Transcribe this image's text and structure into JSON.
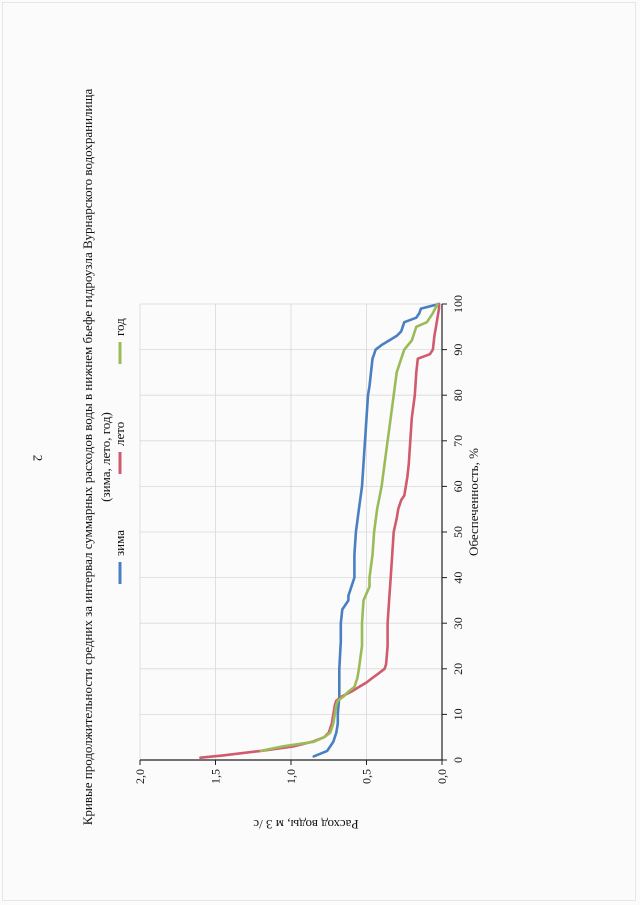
{
  "page": {
    "number": "2"
  },
  "chart_data": {
    "type": "line",
    "title": "Кривые продолжительности средних за интервал суммарных расходов воды в нижнем бьефе гидроузла Вурнарского водохранилища",
    "subtitle": "(зима, лето, год)",
    "xlabel": "Обеспеченность, %",
    "ylabel": "Расход воды, м 3 /с",
    "xlim": [
      0,
      100
    ],
    "ylim": [
      0,
      2.0
    ],
    "x_ticks": [
      "0",
      "10",
      "20",
      "30",
      "40",
      "50",
      "60",
      "70",
      "80",
      "90",
      "100"
    ],
    "y_ticks": [
      "0,0",
      "0,5",
      "1,0",
      "1,5",
      "2,0"
    ],
    "grid": true,
    "legend_position": "top",
    "colors": {
      "зима": "#4a7fc1",
      "лето": "#d05a6e",
      "год": "#9bbb59"
    },
    "series": [
      {
        "name": "зима",
        "points": [
          [
            0.8,
            0.85
          ],
          [
            2,
            0.76
          ],
          [
            4,
            0.72
          ],
          [
            6,
            0.7
          ],
          [
            8,
            0.69
          ],
          [
            10,
            0.69
          ],
          [
            14,
            0.68
          ],
          [
            20,
            0.68
          ],
          [
            26,
            0.67
          ],
          [
            30,
            0.67
          ],
          [
            33,
            0.66
          ],
          [
            35,
            0.62
          ],
          [
            36,
            0.62
          ],
          [
            38,
            0.6
          ],
          [
            40,
            0.58
          ],
          [
            45,
            0.58
          ],
          [
            50,
            0.57
          ],
          [
            55,
            0.55
          ],
          [
            60,
            0.53
          ],
          [
            65,
            0.52
          ],
          [
            70,
            0.51
          ],
          [
            75,
            0.5
          ],
          [
            80,
            0.49
          ],
          [
            82,
            0.48
          ],
          [
            85,
            0.47
          ],
          [
            88,
            0.46
          ],
          [
            89,
            0.45
          ],
          [
            90,
            0.44
          ],
          [
            91,
            0.4
          ],
          [
            92,
            0.35
          ],
          [
            93,
            0.3
          ],
          [
            94,
            0.27
          ],
          [
            95,
            0.26
          ],
          [
            96,
            0.25
          ],
          [
            97,
            0.17
          ],
          [
            98,
            0.15
          ],
          [
            99,
            0.14
          ],
          [
            100,
            0.02
          ]
        ]
      },
      {
        "name": "лето",
        "points": [
          [
            0.5,
            1.6
          ],
          [
            1,
            1.45
          ],
          [
            2,
            1.2
          ],
          [
            3,
            0.98
          ],
          [
            4,
            0.86
          ],
          [
            5,
            0.78
          ],
          [
            6,
            0.75
          ],
          [
            8,
            0.73
          ],
          [
            10,
            0.72
          ],
          [
            12,
            0.71
          ],
          [
            13,
            0.7
          ],
          [
            14,
            0.66
          ],
          [
            15,
            0.6
          ],
          [
            16,
            0.55
          ],
          [
            17,
            0.5
          ],
          [
            18,
            0.46
          ],
          [
            19,
            0.42
          ],
          [
            20,
            0.38
          ],
          [
            21,
            0.37
          ],
          [
            25,
            0.36
          ],
          [
            30,
            0.36
          ],
          [
            35,
            0.35
          ],
          [
            40,
            0.34
          ],
          [
            45,
            0.33
          ],
          [
            50,
            0.32
          ],
          [
            53,
            0.3
          ],
          [
            55,
            0.29
          ],
          [
            57,
            0.27
          ],
          [
            58,
            0.25
          ],
          [
            60,
            0.24
          ],
          [
            62,
            0.23
          ],
          [
            65,
            0.22
          ],
          [
            70,
            0.21
          ],
          [
            75,
            0.2
          ],
          [
            80,
            0.18
          ],
          [
            85,
            0.17
          ],
          [
            88,
            0.16
          ],
          [
            89,
            0.08
          ],
          [
            90,
            0.06
          ],
          [
            93,
            0.05
          ],
          [
            95,
            0.04
          ],
          [
            97,
            0.03
          ],
          [
            99,
            0.02
          ],
          [
            100,
            0.02
          ]
        ]
      },
      {
        "name": "год",
        "points": [
          [
            2,
            1.2
          ],
          [
            3,
            1.05
          ],
          [
            4,
            0.85
          ],
          [
            5,
            0.78
          ],
          [
            6,
            0.74
          ],
          [
            8,
            0.72
          ],
          [
            10,
            0.71
          ],
          [
            12,
            0.7
          ],
          [
            13,
            0.69
          ],
          [
            14,
            0.65
          ],
          [
            15,
            0.62
          ],
          [
            16,
            0.58
          ],
          [
            18,
            0.56
          ],
          [
            20,
            0.55
          ],
          [
            25,
            0.53
          ],
          [
            30,
            0.53
          ],
          [
            35,
            0.52
          ],
          [
            38,
            0.48
          ],
          [
            40,
            0.48
          ],
          [
            45,
            0.46
          ],
          [
            50,
            0.45
          ],
          [
            55,
            0.43
          ],
          [
            60,
            0.4
          ],
          [
            65,
            0.38
          ],
          [
            70,
            0.36
          ],
          [
            75,
            0.34
          ],
          [
            80,
            0.32
          ],
          [
            85,
            0.3
          ],
          [
            88,
            0.27
          ],
          [
            90,
            0.25
          ],
          [
            92,
            0.2
          ],
          [
            94,
            0.18
          ],
          [
            95,
            0.17
          ],
          [
            96,
            0.1
          ],
          [
            97,
            0.08
          ],
          [
            98,
            0.06
          ],
          [
            100,
            0.03
          ]
        ]
      }
    ]
  }
}
